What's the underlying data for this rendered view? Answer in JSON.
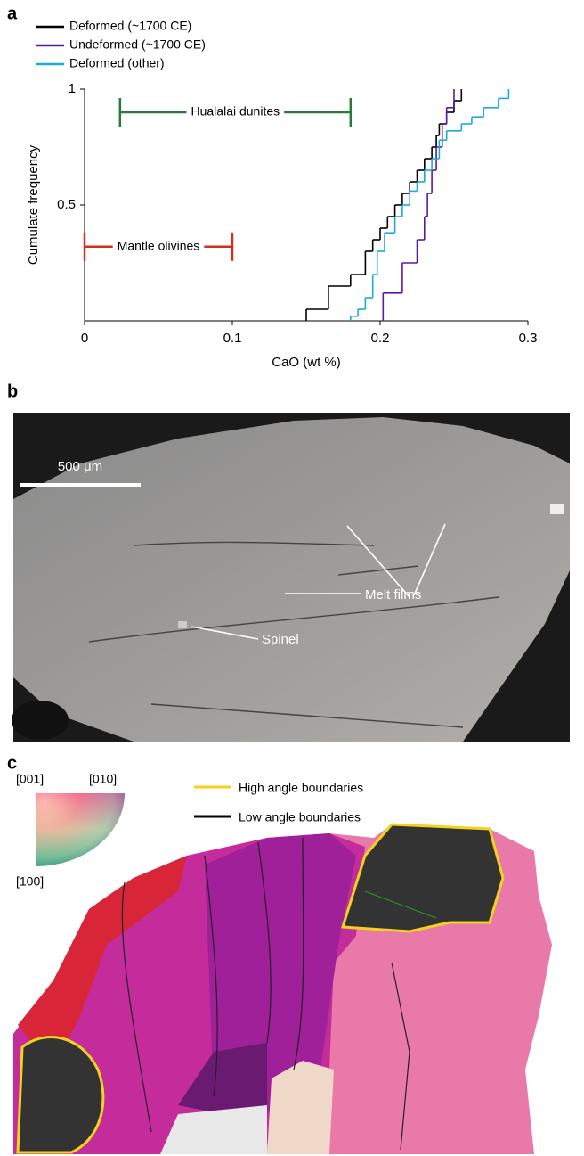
{
  "panel_labels": [
    "a",
    "b",
    "c"
  ],
  "chart_data": {
    "type": "step",
    "x_label": "CaO (wt %)",
    "y_label": "Cumulate frequency",
    "xlim": [
      0,
      0.3
    ],
    "xticks": [
      0,
      0.1,
      0.2,
      0.3
    ],
    "ylim": [
      0,
      1
    ],
    "yticks": [
      0.5,
      1
    ],
    "series": [
      {
        "name": "Deformed (~1700 CE)",
        "color": "#000000",
        "x": [
          0.15,
          0.165,
          0.18,
          0.19,
          0.195,
          0.2,
          0.205,
          0.21,
          0.215,
          0.22,
          0.225,
          0.23,
          0.235,
          0.238,
          0.24,
          0.245,
          0.25,
          0.255
        ],
        "values": [
          0.05,
          0.15,
          0.2,
          0.3,
          0.35,
          0.4,
          0.45,
          0.5,
          0.55,
          0.6,
          0.65,
          0.7,
          0.75,
          0.8,
          0.85,
          0.9,
          0.95,
          1
        ]
      },
      {
        "name": "Undeformed (~1700 CE)",
        "color": "#5b1a9e",
        "x": [
          0.202,
          0.215,
          0.225,
          0.23,
          0.232,
          0.235,
          0.238,
          0.242,
          0.245,
          0.25
        ],
        "values": [
          0.12,
          0.25,
          0.35,
          0.45,
          0.55,
          0.65,
          0.75,
          0.85,
          0.92,
          1
        ]
      },
      {
        "name": "Deformed (other)",
        "color": "#1ea8dc",
        "x": [
          0.18,
          0.185,
          0.19,
          0.195,
          0.198,
          0.203,
          0.21,
          0.215,
          0.22,
          0.225,
          0.23,
          0.235,
          0.24,
          0.245,
          0.255,
          0.262,
          0.27,
          0.28,
          0.287
        ],
        "values": [
          0.02,
          0.05,
          0.1,
          0.2,
          0.3,
          0.38,
          0.45,
          0.5,
          0.56,
          0.6,
          0.65,
          0.7,
          0.78,
          0.82,
          0.85,
          0.88,
          0.92,
          0.96,
          1
        ]
      }
    ],
    "ranges": [
      {
        "label": "Hualalai dunites",
        "color": "#2a7a3a",
        "x": [
          0.024,
          0.18
        ],
        "y": 0.9
      },
      {
        "label": "Mantle olivines",
        "color": "#d0321e",
        "x": [
          0,
          0.1
        ],
        "y": 0.32
      }
    ]
  },
  "micrograph": {
    "scale_bar": "500 μm",
    "labels": [
      "Melt films",
      "Spinel"
    ]
  },
  "ebsd_map": {
    "key_labels": [
      "[001]",
      "[010]",
      "[100]"
    ],
    "legend": [
      "High angle boundaries",
      "Low angle boundaries"
    ]
  }
}
